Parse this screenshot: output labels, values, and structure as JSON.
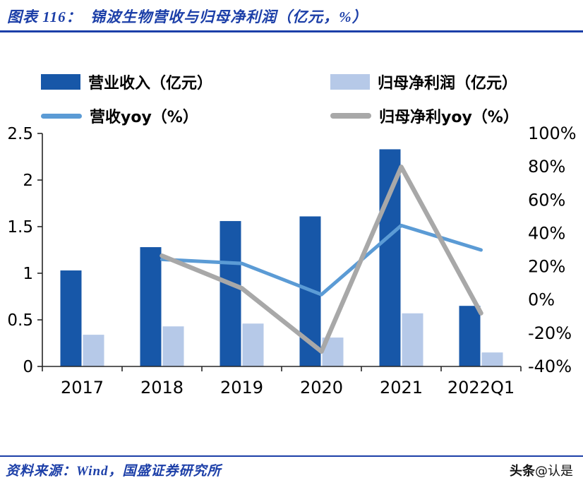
{
  "header": {
    "title": "图表 116：  锦波生物营收与归母净利润（亿元，%）"
  },
  "colors": {
    "accent_blue": "#1C3FA8",
    "revenue_bar": "#1757A8",
    "net_profit_bar": "#B6C9E8",
    "revenue_yoy_line": "#5B9BD5",
    "net_profit_yoy_line": "#A8A8A8"
  },
  "chart_data": {
    "type": "bar",
    "subtype": "combo-bar-line-dual-axis",
    "categories": [
      "2017",
      "2018",
      "2019",
      "2020",
      "2021",
      "2022Q1"
    ],
    "series": [
      {
        "name": "营业收入（亿元）",
        "type": "bar",
        "axis": "left",
        "color": "#1757A8",
        "values": [
          1.03,
          1.28,
          1.56,
          1.61,
          2.33,
          0.65
        ]
      },
      {
        "name": "归母净利润（亿元）",
        "type": "bar",
        "axis": "left",
        "color": "#B6C9E8",
        "values": [
          0.34,
          0.43,
          0.46,
          0.31,
          0.57,
          0.15
        ]
      },
      {
        "name": "营收yoy（%）",
        "type": "line",
        "axis": "right",
        "color": "#5B9BD5",
        "values": [
          null,
          24.3,
          21.9,
          3.2,
          44.7,
          30.0
        ]
      },
      {
        "name": "归母净利yoy（%）",
        "type": "line",
        "axis": "right",
        "color": "#A8A8A8",
        "values": [
          null,
          26.5,
          7.0,
          -31.0,
          79.9,
          -8.0
        ]
      }
    ],
    "left_axis": {
      "min": 0,
      "max": 2.5,
      "step": 0.5,
      "labels": [
        "0",
        "0.5",
        "1",
        "1.5",
        "2",
        "2.5"
      ]
    },
    "right_axis": {
      "min": -40,
      "max": 100,
      "step": 20,
      "labels": [
        "-40%",
        "-20%",
        "0%",
        "20%",
        "40%",
        "60%",
        "80%",
        "100%"
      ]
    },
    "grid": false,
    "legend_position": "top"
  },
  "footer": {
    "source": "资料来源：Wind，国盛证券研究所",
    "watermark_bold": "头条",
    "watermark_rest": "@认是"
  }
}
